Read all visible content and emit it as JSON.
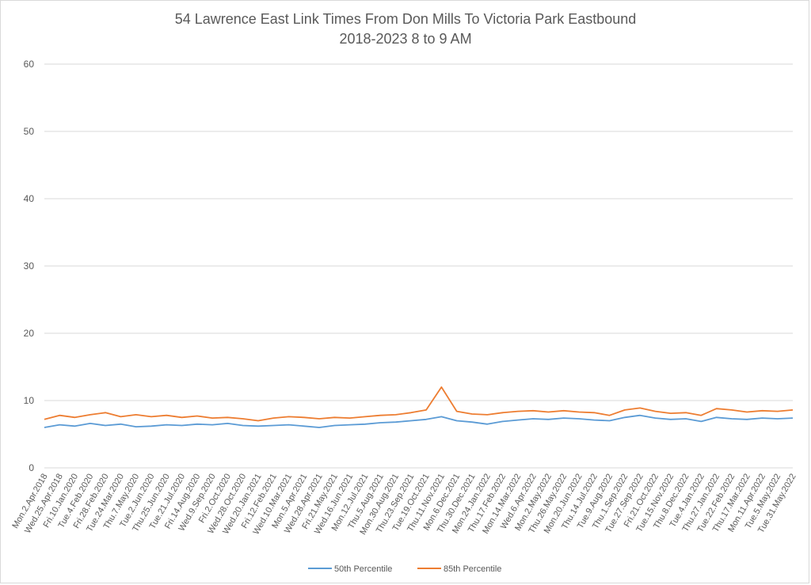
{
  "chart_data": {
    "type": "line",
    "title": "54 Lawrence East Link Times From Don Mills To Victoria Park Eastbound",
    "subtitle": "2018-2023 8 to 9 AM",
    "xlabel": "",
    "ylabel": "",
    "ylim": [
      0,
      60
    ],
    "yticks": [
      0,
      10,
      20,
      30,
      40,
      50,
      60
    ],
    "grid": true,
    "legend_position": "bottom",
    "x_tick_labels": [
      "Mon.2.Apr.2018",
      "Wed.25.Apr.2018",
      "Fri.10.Jan.2020",
      "Tue.4.Feb.2020",
      "Fri.28.Feb.2020",
      "Tue.24.Mar.2020",
      "Thu.7.May.2020",
      "Tue.2.Jun.2020",
      "Thu.25.Jun.2020",
      "Tue.21.Jul.2020",
      "Fri.14.Aug.2020",
      "Wed.9.Sep.2020",
      "Fri.2.Oct.2020",
      "Wed.28.Oct.2020",
      "Wed.20.Jan.2021",
      "Fri.12.Feb.2021",
      "Wed.10.Mar.2021",
      "Mon.5.Apr.2021",
      "Wed.28.Apr.2021",
      "Fri.21.May.2021",
      "Wed.16.Jun.2021",
      "Mon.12.Jul.2021",
      "Thu.5.Aug.2021",
      "Mon.30.Aug.2021",
      "Thu.23.Sep.2021",
      "Tue.19.Oct.2021",
      "Thu.11.Nov.2021",
      "Mon.6.Dec.2021",
      "Thu.30.Dec.2021",
      "Mon.24.Jan.2022",
      "Thu.17.Feb.2022",
      "Mon.14.Mar.2022",
      "Wed.6.Apr.2022",
      "Mon.2.May.2022",
      "Thu.26.May.2022",
      "Mon.20.Jun.2022",
      "Thu.14.Jul.2022",
      "Tue.9.Aug.2022",
      "Thu.1.Sep.2022",
      "Tue.27.Sep.2022",
      "Fri.21.Oct.2022",
      "Tue.15.Nov.2022",
      "Thu.8.Dec.2022",
      "Tue.4.Jan.2022",
      "Thu.27.Jan.2022",
      "Tue.22.Feb.2022",
      "Thu.17.Mar.2022",
      "Mon.11.Apr.2022",
      "Tue.5.May.2022",
      "Tue.31.May.2022"
    ],
    "series": [
      {
        "name": "50th Percentile",
        "color": "#5b9bd5",
        "values": [
          6.0,
          6.4,
          6.2,
          6.6,
          6.3,
          6.5,
          6.1,
          6.2,
          6.4,
          6.3,
          6.5,
          6.4,
          6.6,
          6.3,
          6.2,
          6.3,
          6.4,
          6.2,
          6.0,
          6.3,
          6.4,
          6.5,
          6.7,
          6.8,
          7.0,
          7.2,
          7.6,
          7.0,
          6.8,
          6.5,
          6.9,
          7.1,
          7.3,
          7.2,
          7.4,
          7.3,
          7.1,
          7.0,
          7.5,
          7.8,
          7.4,
          7.2,
          7.3,
          6.9,
          7.5,
          7.3,
          7.2,
          7.4,
          7.3,
          7.4
        ]
      },
      {
        "name": "85th Percentile",
        "color": "#ed7d31",
        "values": [
          7.2,
          7.8,
          7.5,
          7.9,
          8.2,
          7.6,
          7.9,
          7.6,
          7.8,
          7.5,
          7.7,
          7.4,
          7.5,
          7.3,
          7.0,
          7.4,
          7.6,
          7.5,
          7.3,
          7.5,
          7.4,
          7.6,
          7.8,
          7.9,
          8.2,
          8.6,
          12.0,
          8.4,
          8.0,
          7.9,
          8.2,
          8.4,
          8.5,
          8.3,
          8.5,
          8.3,
          8.2,
          7.8,
          8.6,
          8.9,
          8.4,
          8.1,
          8.2,
          7.8,
          8.8,
          8.6,
          8.3,
          8.5,
          8.4,
          8.6
        ]
      }
    ],
    "notes_in_chart": []
  }
}
